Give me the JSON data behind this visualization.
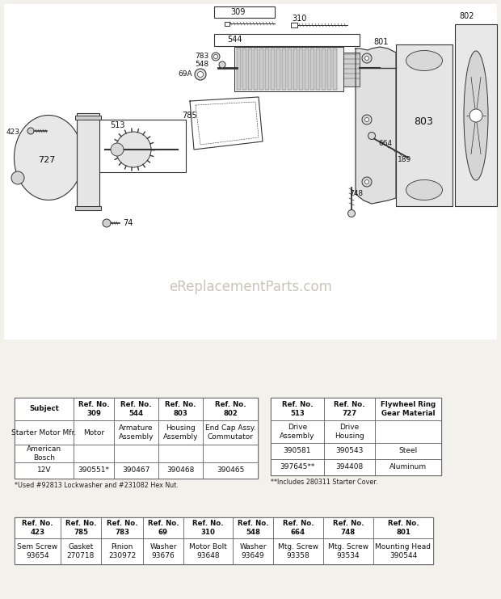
{
  "bg_color": "#f2f1ec",
  "watermark": "eReplacementParts.com",
  "table1_headers": [
    "Subject",
    "Ref. No.\n309",
    "Ref. No.\n544",
    "Ref. No.\n803",
    "Ref. No.\n802"
  ],
  "table1_rows": [
    [
      "Starter Motor Mfr.",
      "Motor",
      "Armature\nAssembly",
      "Housing\nAssembly",
      "End Cap Assy.\nCommutator"
    ],
    [
      "American\nBosch",
      "",
      "",
      "",
      ""
    ],
    [
      "12V",
      "390551*",
      "390467",
      "390468",
      "390465"
    ]
  ],
  "table1_footnote": "*Used #92813 Lockwasher and #231082 Hex Nut.",
  "table2_headers": [
    "Ref. No.\n513",
    "Ref. No.\n727",
    "Flywheel Ring\nGear Material"
  ],
  "table2_rows": [
    [
      "Drive\nAssembly",
      "Drive\nHousing",
      ""
    ],
    [
      "390581",
      "390543",
      "Steel"
    ],
    [
      "397645**",
      "394408",
      "Aluminum"
    ]
  ],
  "table2_footnote": "**Includes 280311 Starter Cover.",
  "table3_headers": [
    "Ref. No.\n423",
    "Ref. No.\n785",
    "Ref. No.\n783",
    "Ref. No.\n69",
    "Ref. No.\n310",
    "Ref. No.\n548",
    "Ref. No.\n664",
    "Ref. No.\n748",
    "Ref. No.\n801"
  ],
  "table3_rows": [
    [
      "Sem Screw\n93654",
      "Gasket\n270718",
      "Pinion\n230972",
      "Washer\n93676",
      "Motor Bolt\n93648",
      "Washer\n93649",
      "Mtg. Screw\n93358",
      "Mtg. Screw\n93534",
      "Mounting Head\n390544"
    ]
  ],
  "diag_bg": "#f2f1ec",
  "line_color": "#333333",
  "table_line_color": "#555555"
}
